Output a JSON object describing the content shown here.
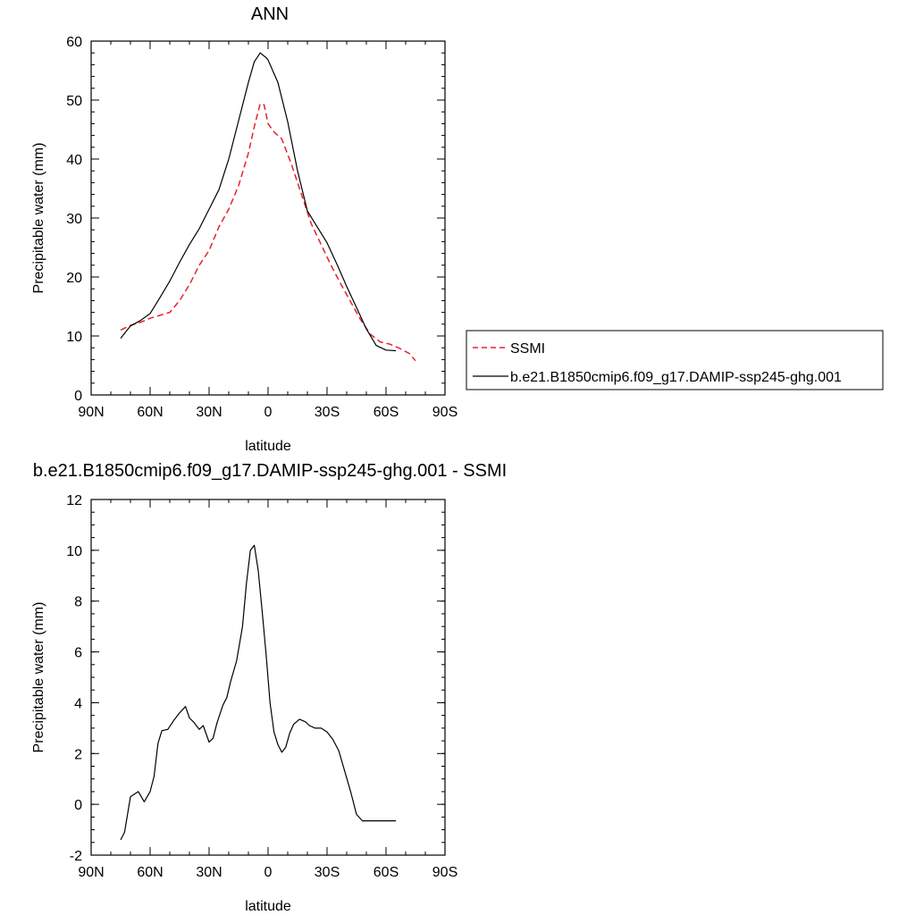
{
  "chart_data": [
    {
      "type": "line",
      "title": "ANN",
      "xlabel": "latitude",
      "ylabel": "Precipitable water (mm)",
      "xlim": [
        -90,
        90
      ],
      "ylim": [
        0,
        60
      ],
      "x_ticks": [
        {
          "value": -90,
          "label": "90N"
        },
        {
          "value": -60,
          "label": "60N"
        },
        {
          "value": -30,
          "label": "30N"
        },
        {
          "value": 0,
          "label": "0"
        },
        {
          "value": 30,
          "label": "30S"
        },
        {
          "value": 60,
          "label": "60S"
        },
        {
          "value": 90,
          "label": "90S"
        }
      ],
      "y_ticks": [
        {
          "value": 0,
          "label": "0"
        },
        {
          "value": 10,
          "label": "10"
        },
        {
          "value": 20,
          "label": "20"
        },
        {
          "value": 30,
          "label": "30"
        },
        {
          "value": 40,
          "label": "40"
        },
        {
          "value": 50,
          "label": "50"
        },
        {
          "value": 60,
          "label": "60"
        }
      ],
      "grid": false,
      "legend_position": "right",
      "series": [
        {
          "name": "SSMI",
          "color": "#e8212a",
          "dash": "dashed",
          "x": [
            -75,
            -70,
            -65,
            -60,
            -55,
            -50,
            -45,
            -40,
            -35,
            -30,
            -25,
            -20,
            -15,
            -10,
            -7,
            -4,
            -2,
            0,
            3,
            7,
            12,
            17,
            22,
            27,
            32,
            37,
            42,
            47,
            52,
            57,
            62,
            67,
            72,
            75
          ],
          "y": [
            11,
            11.8,
            12.3,
            13,
            13.5,
            14,
            16,
            18.7,
            22,
            24.5,
            28.5,
            31.5,
            35.5,
            41,
            45.5,
            49.4,
            49.2,
            46,
            44.6,
            43.4,
            39,
            34,
            29,
            25.5,
            22,
            18.8,
            15.8,
            12.8,
            10.3,
            9,
            8.6,
            7.9,
            7,
            5.8
          ]
        },
        {
          "name": "b.e21.B1850cmip6.f09_g17.DAMIP-ssp245-ghg.001",
          "color": "#000000",
          "dash": "solid",
          "x": [
            -75,
            -70,
            -65,
            -60,
            -55,
            -50,
            -45,
            -40,
            -35,
            -30,
            -25,
            -20,
            -15,
            -10,
            -7,
            -4,
            -1,
            0,
            5,
            10,
            15,
            20,
            25,
            30,
            35,
            40,
            45,
            50,
            55,
            60,
            65
          ],
          "y": [
            9.6,
            11.7,
            12.6,
            13.8,
            16.5,
            19.3,
            22.5,
            25.5,
            28.2,
            31.5,
            34.8,
            40,
            46.5,
            53,
            56.5,
            58,
            57.2,
            56.8,
            53,
            46.3,
            38,
            31.2,
            28.5,
            25.8,
            22.2,
            18.4,
            14.8,
            11.2,
            8.4,
            7.6,
            7.5
          ]
        }
      ]
    },
    {
      "type": "line",
      "title": "b.e21.B1850cmip6.f09_g17.DAMIP-ssp245-ghg.001 - SSMI",
      "xlabel": "latitude",
      "ylabel": "Precipitable water (mm)",
      "xlim": [
        -90,
        90
      ],
      "ylim": [
        -2,
        12
      ],
      "x_ticks": [
        {
          "value": -90,
          "label": "90N"
        },
        {
          "value": -60,
          "label": "60N"
        },
        {
          "value": -30,
          "label": "30N"
        },
        {
          "value": 0,
          "label": "0"
        },
        {
          "value": 30,
          "label": "30S"
        },
        {
          "value": 60,
          "label": "60S"
        },
        {
          "value": 90,
          "label": "90S"
        }
      ],
      "y_ticks": [
        {
          "value": -2,
          "label": "-2"
        },
        {
          "value": 0,
          "label": "0"
        },
        {
          "value": 2,
          "label": "2"
        },
        {
          "value": 4,
          "label": "4"
        },
        {
          "value": 6,
          "label": "6"
        },
        {
          "value": 8,
          "label": "8"
        },
        {
          "value": 10,
          "label": "10"
        },
        {
          "value": 12,
          "label": "12"
        }
      ],
      "grid": false,
      "series": [
        {
          "color": "#000000",
          "dash": "solid",
          "x": [
            -75,
            -73,
            -70,
            -66,
            -63,
            -60,
            -58,
            -56,
            -54,
            -51,
            -48,
            -45,
            -42,
            -40,
            -38,
            -35,
            -33,
            -30,
            -28,
            -26,
            -23,
            -21,
            -19,
            -16,
            -13,
            -11,
            -9,
            -7,
            -5,
            -3,
            -1,
            1,
            3,
            5,
            7,
            9,
            11,
            13,
            16,
            19,
            21,
            24,
            27,
            30,
            33,
            36,
            39,
            42,
            45,
            48,
            51,
            54,
            57,
            60,
            62,
            65
          ],
          "y": [
            -1.4,
            -1.1,
            0.3,
            0.5,
            0.1,
            0.5,
            1.1,
            2.4,
            2.9,
            2.95,
            3.3,
            3.6,
            3.85,
            3.4,
            3.25,
            2.95,
            3.1,
            2.45,
            2.6,
            3.2,
            3.9,
            4.2,
            4.85,
            5.65,
            7.0,
            8.7,
            10.0,
            10.2,
            9.2,
            7.6,
            5.9,
            4.0,
            2.85,
            2.35,
            2.05,
            2.25,
            2.8,
            3.15,
            3.35,
            3.25,
            3.1,
            3.0,
            3.0,
            2.85,
            2.55,
            2.1,
            1.3,
            0.5,
            -0.4,
            -0.65,
            -0.65,
            -0.65,
            -0.65,
            -0.65,
            -0.65,
            -0.65
          ]
        }
      ]
    }
  ]
}
